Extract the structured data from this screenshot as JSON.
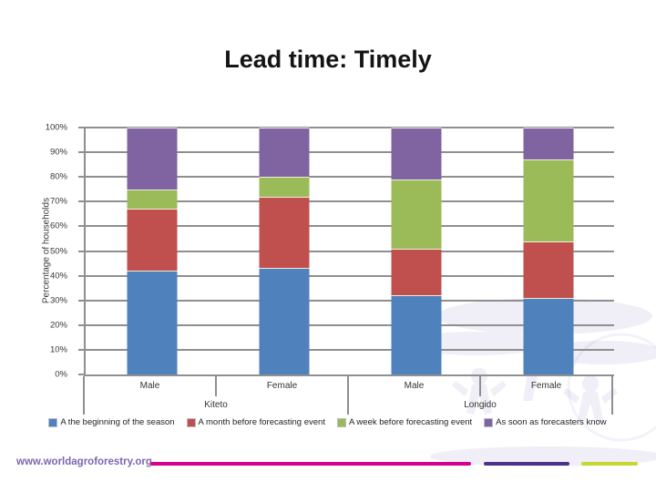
{
  "title": "Lead time: Timely",
  "chart_data": {
    "type": "bar",
    "stacked": true,
    "title": "Lead time: Timely",
    "xlabel": "",
    "ylabel": "Percentage of households",
    "ylim": [
      0,
      100
    ],
    "ytick_step": 10,
    "ytick_suffix": "%",
    "grid": true,
    "legend_position": "bottom",
    "categories": [
      "Male",
      "Female",
      "Male",
      "Female"
    ],
    "groups": [
      {
        "label": "Kiteto",
        "span": [
          "Male",
          "Female"
        ]
      },
      {
        "label": "Longido",
        "span": [
          "Male",
          "Female"
        ]
      }
    ],
    "series": [
      {
        "name": "A the beginning of the season",
        "color": "#4F81BD",
        "values": [
          42,
          43,
          32,
          31
        ]
      },
      {
        "name": "A month before forecasting event",
        "color": "#C0504D",
        "values": [
          25,
          29,
          19,
          23
        ]
      },
      {
        "name": "A week before forecasting event",
        "color": "#9BBB59",
        "values": [
          8,
          8,
          28,
          33
        ]
      },
      {
        "name": "As soon as forecasters know",
        "color": "#8064A2",
        "values": [
          25,
          20,
          21,
          13
        ]
      }
    ]
  },
  "footer": {
    "url": "www.worldagroforestry.org",
    "line_colors": [
      "#D6008F",
      "#4B3189",
      "#C6D82F"
    ]
  },
  "style_colors": {
    "gridline": "#8f8f8f",
    "watermark": "#8F84C2"
  }
}
